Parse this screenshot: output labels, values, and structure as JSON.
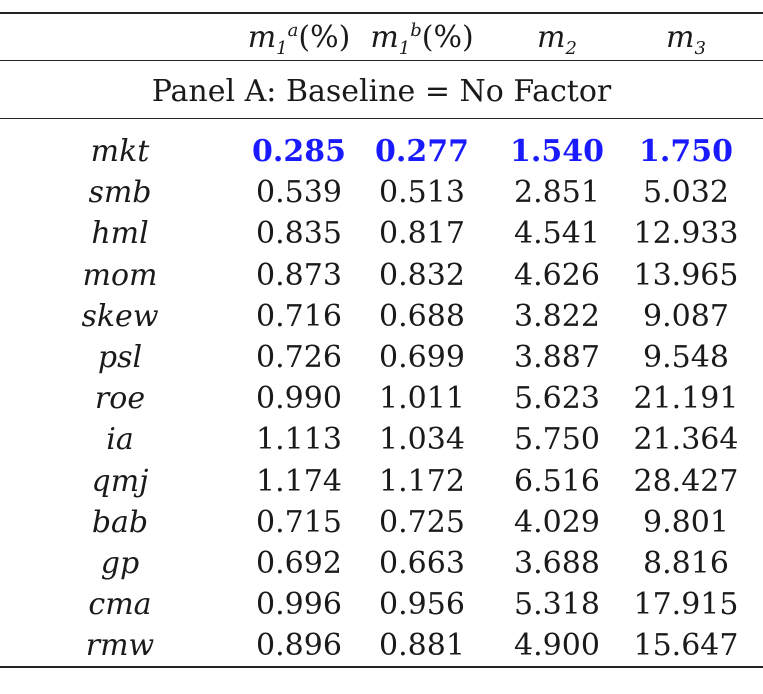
{
  "header": {
    "col1": {
      "base": "m",
      "sub": "1",
      "sup": "a",
      "unit": "(%)"
    },
    "col2": {
      "base": "m",
      "sub": "1",
      "sup": "b",
      "unit": "(%)"
    },
    "col3": {
      "base": "m",
      "sub": "2"
    },
    "col4": {
      "base": "m",
      "sub": "3"
    }
  },
  "panel_title": "Panel A: Baseline = No Factor",
  "highlight_color": "#1a1aff",
  "rows": [
    {
      "label": "mkt",
      "v1": "0.285",
      "v2": "0.277",
      "v3": "1.540",
      "v4": "1.750",
      "highlight": true
    },
    {
      "label": "smb",
      "v1": "0.539",
      "v2": "0.513",
      "v3": "2.851",
      "v4": "5.032"
    },
    {
      "label": "hml",
      "v1": "0.835",
      "v2": "0.817",
      "v3": "4.541",
      "v4": "12.933"
    },
    {
      "label": "mom",
      "v1": "0.873",
      "v2": "0.832",
      "v3": "4.626",
      "v4": "13.965"
    },
    {
      "label": "skew",
      "v1": "0.716",
      "v2": "0.688",
      "v3": "3.822",
      "v4": "9.087"
    },
    {
      "label": "psl",
      "v1": "0.726",
      "v2": "0.699",
      "v3": "3.887",
      "v4": "9.548"
    },
    {
      "label": "roe",
      "v1": "0.990",
      "v2": "1.011",
      "v3": "5.623",
      "v4": "21.191"
    },
    {
      "label": "ia",
      "v1": "1.113",
      "v2": "1.034",
      "v3": "5.750",
      "v4": "21.364"
    },
    {
      "label": "qmj",
      "v1": "1.174",
      "v2": "1.172",
      "v3": "6.516",
      "v4": "28.427"
    },
    {
      "label": "bab",
      "v1": "0.715",
      "v2": "0.725",
      "v3": "4.029",
      "v4": "9.801"
    },
    {
      "label": "gp",
      "v1": "0.692",
      "v2": "0.663",
      "v3": "3.688",
      "v4": "8.816"
    },
    {
      "label": "cma",
      "v1": "0.996",
      "v2": "0.956",
      "v3": "5.318",
      "v4": "17.915"
    },
    {
      "label": "rmw",
      "v1": "0.896",
      "v2": "0.881",
      "v3": "4.900",
      "v4": "15.647"
    }
  ]
}
